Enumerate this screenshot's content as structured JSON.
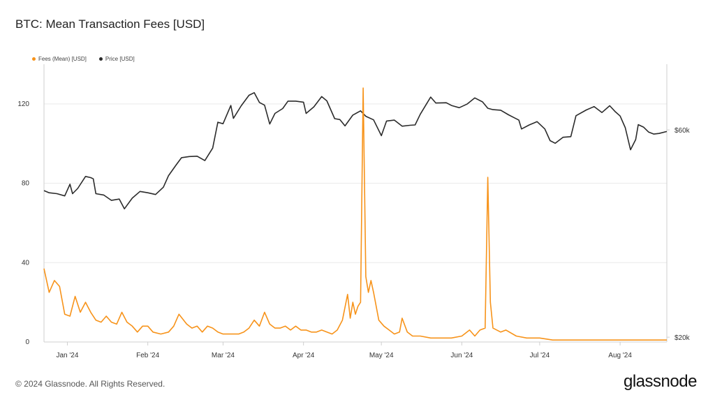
{
  "colors": {
    "fees": "#f7931a",
    "price": "#2b2b2b",
    "grid": "#e9e9e9",
    "axis": "#cfcfcf"
  },
  "footer": {
    "copyright": "© 2024 Glassnode. All Rights Reserved.",
    "brand": "glassnode"
  },
  "chart_data": {
    "type": "line",
    "title": "BTC: Mean Transaction Fees [USD]",
    "legend": {
      "placement": "top-left",
      "entries": [
        "Fees (Mean) [USD]",
        "Price [USD]"
      ]
    },
    "grid": "horizontal",
    "x": {
      "start": "2023-12-23",
      "end": "2024-08-19",
      "tick_labels": [
        "Jan '24",
        "Feb '24",
        "Mar '24",
        "Apr '24",
        "May '24",
        "Jun '24",
        "Jul '24",
        "Aug '24"
      ],
      "tick_dates": [
        "2024-01-01",
        "2024-02-01",
        "2024-03-01",
        "2024-04-01",
        "2024-05-01",
        "2024-06-01",
        "2024-07-01",
        "2024-08-01"
      ]
    },
    "y_left": {
      "range": [
        0,
        140
      ],
      "ticks": [
        0,
        40,
        80,
        120
      ],
      "tick_labels": [
        "0",
        "40",
        "80",
        "120"
      ]
    },
    "y_right": {
      "scale": "log",
      "range": [
        19500,
        85000
      ],
      "ticks": [
        20000,
        60000
      ],
      "tick_labels": [
        "$20k",
        "$60k"
      ]
    },
    "series": [
      {
        "name": "Fees (Mean) [USD]",
        "axis": "left",
        "points": [
          [
            "2023-12-23",
            37
          ],
          [
            "2023-12-25",
            25
          ],
          [
            "2023-12-27",
            31
          ],
          [
            "2023-12-29",
            28
          ],
          [
            "2023-12-31",
            14
          ],
          [
            "2024-01-02",
            13
          ],
          [
            "2024-01-04",
            23
          ],
          [
            "2024-01-06",
            15
          ],
          [
            "2024-01-08",
            20
          ],
          [
            "2024-01-10",
            15
          ],
          [
            "2024-01-12",
            11
          ],
          [
            "2024-01-14",
            10
          ],
          [
            "2024-01-16",
            13
          ],
          [
            "2024-01-18",
            10
          ],
          [
            "2024-01-20",
            9
          ],
          [
            "2024-01-22",
            15
          ],
          [
            "2024-01-24",
            10
          ],
          [
            "2024-01-26",
            8
          ],
          [
            "2024-01-28",
            5
          ],
          [
            "2024-01-30",
            8
          ],
          [
            "2024-02-01",
            8
          ],
          [
            "2024-02-03",
            5
          ],
          [
            "2024-02-06",
            4
          ],
          [
            "2024-02-09",
            5
          ],
          [
            "2024-02-11",
            8
          ],
          [
            "2024-02-13",
            14
          ],
          [
            "2024-02-16",
            9
          ],
          [
            "2024-02-18",
            7
          ],
          [
            "2024-02-20",
            8
          ],
          [
            "2024-02-22",
            5
          ],
          [
            "2024-02-24",
            8
          ],
          [
            "2024-02-26",
            7
          ],
          [
            "2024-02-28",
            5
          ],
          [
            "2024-03-01",
            4
          ],
          [
            "2024-03-04",
            4
          ],
          [
            "2024-03-07",
            4
          ],
          [
            "2024-03-09",
            5
          ],
          [
            "2024-03-11",
            7
          ],
          [
            "2024-03-13",
            11
          ],
          [
            "2024-03-15",
            8
          ],
          [
            "2024-03-17",
            15
          ],
          [
            "2024-03-19",
            9
          ],
          [
            "2024-03-21",
            7
          ],
          [
            "2024-03-23",
            7
          ],
          [
            "2024-03-25",
            8
          ],
          [
            "2024-03-27",
            6
          ],
          [
            "2024-03-29",
            8
          ],
          [
            "2024-03-31",
            6
          ],
          [
            "2024-04-02",
            6
          ],
          [
            "2024-04-04",
            5
          ],
          [
            "2024-04-06",
            5
          ],
          [
            "2024-04-08",
            6
          ],
          [
            "2024-04-10",
            5
          ],
          [
            "2024-04-12",
            4
          ],
          [
            "2024-04-14",
            6
          ],
          [
            "2024-04-16",
            11
          ],
          [
            "2024-04-18",
            24
          ],
          [
            "2024-04-19",
            12
          ],
          [
            "2024-04-20",
            20
          ],
          [
            "2024-04-21",
            14
          ],
          [
            "2024-04-22",
            18
          ],
          [
            "2024-04-23",
            20
          ],
          [
            "2024-04-24",
            128
          ],
          [
            "2024-04-25",
            33
          ],
          [
            "2024-04-26",
            25
          ],
          [
            "2024-04-27",
            31
          ],
          [
            "2024-04-28",
            25
          ],
          [
            "2024-04-30",
            11
          ],
          [
            "2024-05-02",
            8
          ],
          [
            "2024-05-04",
            6
          ],
          [
            "2024-05-06",
            4
          ],
          [
            "2024-05-08",
            5
          ],
          [
            "2024-05-09",
            12
          ],
          [
            "2024-05-11",
            5
          ],
          [
            "2024-05-13",
            3
          ],
          [
            "2024-05-16",
            3
          ],
          [
            "2024-05-20",
            2
          ],
          [
            "2024-05-24",
            2
          ],
          [
            "2024-05-28",
            2
          ],
          [
            "2024-06-01",
            3
          ],
          [
            "2024-06-04",
            6
          ],
          [
            "2024-06-06",
            3
          ],
          [
            "2024-06-08",
            6
          ],
          [
            "2024-06-10",
            7
          ],
          [
            "2024-06-11",
            83
          ],
          [
            "2024-06-12",
            20
          ],
          [
            "2024-06-13",
            7
          ],
          [
            "2024-06-16",
            5
          ],
          [
            "2024-06-18",
            6
          ],
          [
            "2024-06-22",
            3
          ],
          [
            "2024-06-26",
            2
          ],
          [
            "2024-07-01",
            2
          ],
          [
            "2024-07-06",
            1
          ],
          [
            "2024-07-12",
            1
          ],
          [
            "2024-07-18",
            1
          ],
          [
            "2024-07-24",
            1
          ],
          [
            "2024-07-30",
            1
          ],
          [
            "2024-08-05",
            1
          ],
          [
            "2024-08-10",
            1
          ],
          [
            "2024-08-15",
            1
          ],
          [
            "2024-08-19",
            1
          ]
        ]
      },
      {
        "name": "Price [USD]",
        "axis": "right",
        "points": [
          [
            "2023-12-23",
            43500
          ],
          [
            "2023-12-25",
            43000
          ],
          [
            "2023-12-28",
            42800
          ],
          [
            "2023-12-31",
            42300
          ],
          [
            "2024-01-02",
            45000
          ],
          [
            "2024-01-03",
            42800
          ],
          [
            "2024-01-05",
            44000
          ],
          [
            "2024-01-08",
            46900
          ],
          [
            "2024-01-10",
            46600
          ],
          [
            "2024-01-11",
            46300
          ],
          [
            "2024-01-12",
            42800
          ],
          [
            "2024-01-15",
            42500
          ],
          [
            "2024-01-18",
            41300
          ],
          [
            "2024-01-21",
            41600
          ],
          [
            "2024-01-23",
            39500
          ],
          [
            "2024-01-26",
            41800
          ],
          [
            "2024-01-29",
            43300
          ],
          [
            "2024-02-01",
            43000
          ],
          [
            "2024-02-04",
            42600
          ],
          [
            "2024-02-07",
            44300
          ],
          [
            "2024-02-09",
            47100
          ],
          [
            "2024-02-12",
            49900
          ],
          [
            "2024-02-14",
            51800
          ],
          [
            "2024-02-17",
            52100
          ],
          [
            "2024-02-20",
            52200
          ],
          [
            "2024-02-23",
            51000
          ],
          [
            "2024-02-26",
            54500
          ],
          [
            "2024-02-28",
            62500
          ],
          [
            "2024-03-01",
            62000
          ],
          [
            "2024-03-04",
            68300
          ],
          [
            "2024-03-05",
            63800
          ],
          [
            "2024-03-08",
            68200
          ],
          [
            "2024-03-11",
            72100
          ],
          [
            "2024-03-13",
            73100
          ],
          [
            "2024-03-15",
            69400
          ],
          [
            "2024-03-17",
            68400
          ],
          [
            "2024-03-19",
            61900
          ],
          [
            "2024-03-21",
            65500
          ],
          [
            "2024-03-24",
            67200
          ],
          [
            "2024-03-26",
            69900
          ],
          [
            "2024-03-29",
            69900
          ],
          [
            "2024-04-01",
            69500
          ],
          [
            "2024-04-02",
            65500
          ],
          [
            "2024-04-05",
            67800
          ],
          [
            "2024-04-08",
            71600
          ],
          [
            "2024-04-10",
            70000
          ],
          [
            "2024-04-13",
            63700
          ],
          [
            "2024-04-15",
            63400
          ],
          [
            "2024-04-17",
            61300
          ],
          [
            "2024-04-20",
            64900
          ],
          [
            "2024-04-23",
            66400
          ],
          [
            "2024-04-25",
            64500
          ],
          [
            "2024-04-28",
            63300
          ],
          [
            "2024-05-01",
            58200
          ],
          [
            "2024-05-03",
            62900
          ],
          [
            "2024-05-06",
            63200
          ],
          [
            "2024-05-09",
            61200
          ],
          [
            "2024-05-12",
            61500
          ],
          [
            "2024-05-14",
            61600
          ],
          [
            "2024-05-16",
            65200
          ],
          [
            "2024-05-20",
            71400
          ],
          [
            "2024-05-22",
            69200
          ],
          [
            "2024-05-26",
            69300
          ],
          [
            "2024-05-28",
            68300
          ],
          [
            "2024-05-31",
            67500
          ],
          [
            "2024-06-03",
            68800
          ],
          [
            "2024-06-06",
            71100
          ],
          [
            "2024-06-09",
            69600
          ],
          [
            "2024-06-11",
            67300
          ],
          [
            "2024-06-13",
            66800
          ],
          [
            "2024-06-16",
            66600
          ],
          [
            "2024-06-19",
            65000
          ],
          [
            "2024-06-21",
            64100
          ],
          [
            "2024-06-23",
            63200
          ],
          [
            "2024-06-24",
            60300
          ],
          [
            "2024-06-27",
            61600
          ],
          [
            "2024-06-30",
            62700
          ],
          [
            "2024-07-03",
            60300
          ],
          [
            "2024-07-05",
            56700
          ],
          [
            "2024-07-07",
            55900
          ],
          [
            "2024-07-10",
            57700
          ],
          [
            "2024-07-13",
            57900
          ],
          [
            "2024-07-15",
            64700
          ],
          [
            "2024-07-19",
            66700
          ],
          [
            "2024-07-22",
            67900
          ],
          [
            "2024-07-25",
            65800
          ],
          [
            "2024-07-28",
            68200
          ],
          [
            "2024-07-30",
            66200
          ],
          [
            "2024-08-01",
            64600
          ],
          [
            "2024-08-03",
            60700
          ],
          [
            "2024-08-05",
            54000
          ],
          [
            "2024-08-07",
            57000
          ],
          [
            "2024-08-08",
            61700
          ],
          [
            "2024-08-10",
            60900
          ],
          [
            "2024-08-12",
            59300
          ],
          [
            "2024-08-14",
            58700
          ],
          [
            "2024-08-16",
            58900
          ],
          [
            "2024-08-19",
            59500
          ]
        ]
      }
    ]
  }
}
